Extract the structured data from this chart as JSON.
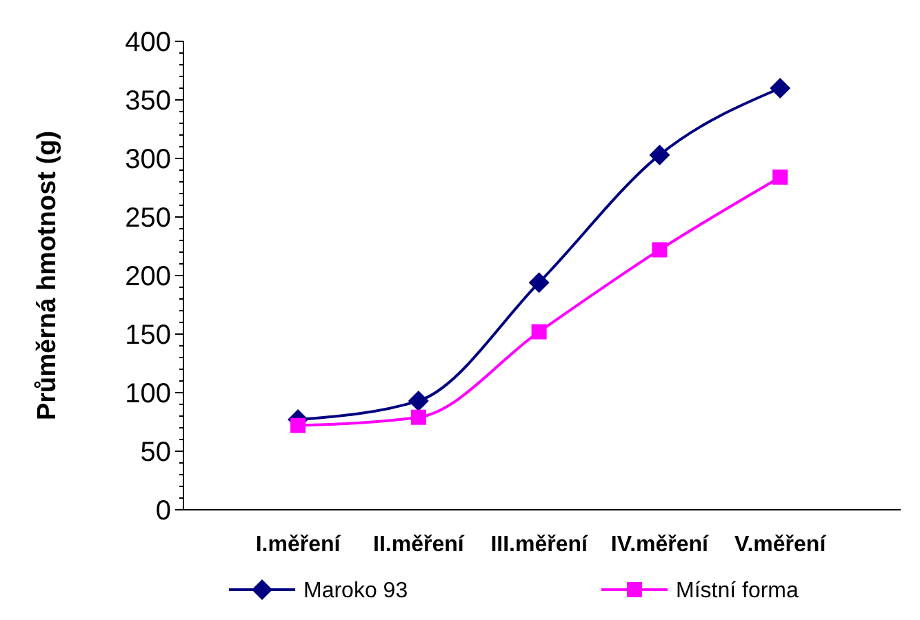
{
  "chart_data": {
    "type": "line",
    "ylabel": "Průměrná hmotnost (g)",
    "categories": [
      "I.měření",
      "II.měření",
      "III.měření",
      "IV.měření",
      "V.měření"
    ],
    "ylim": [
      0,
      400
    ],
    "yticks": [
      0,
      50,
      100,
      150,
      200,
      250,
      300,
      350,
      400
    ],
    "grid": false,
    "legend": "bottom",
    "series": [
      {
        "name": "Maroko 93",
        "color": "#000080",
        "marker": "diamond",
        "values": [
          77,
          93,
          194,
          303,
          360
        ]
      },
      {
        "name": "Místní forma",
        "color": "#ff00ff",
        "marker": "square",
        "values": [
          72,
          79,
          152,
          222,
          284
        ]
      }
    ]
  }
}
